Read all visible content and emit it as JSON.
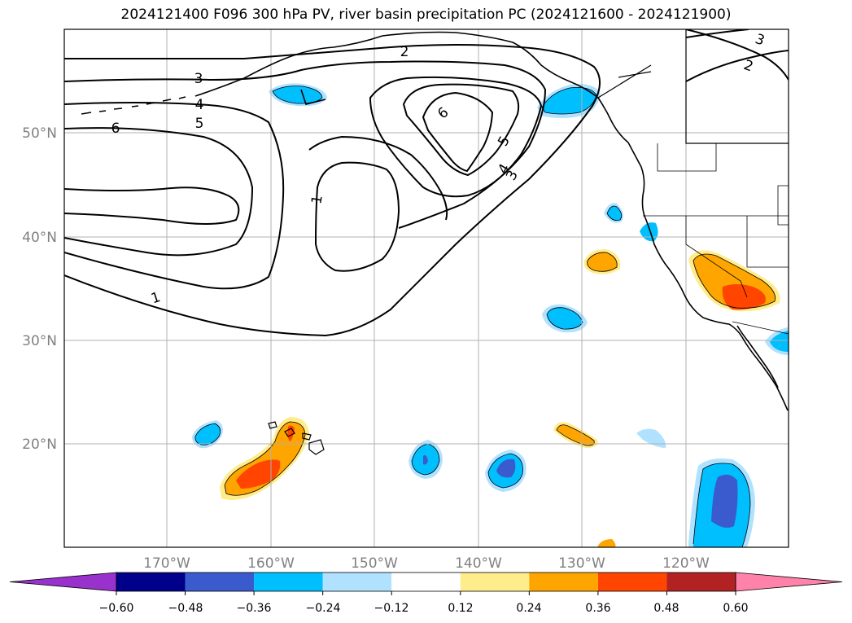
{
  "title": "2024121400 F096 300 hPa PV, river basin precipitation PC (2024121600 - 2024121900)",
  "map": {
    "lat_labels": [
      "50°N",
      "40°N",
      "30°N",
      "20°N"
    ],
    "lon_labels": [
      "170°W",
      "160°W",
      "150°W",
      "140°W",
      "130°W",
      "120°W"
    ],
    "contour_labels": [
      "1",
      "1",
      "2",
      "2",
      "3",
      "3",
      "3",
      "4",
      "4",
      "5",
      "5",
      "6",
      "6"
    ]
  },
  "colorbar": {
    "colors": [
      "#9932CC",
      "#00008B",
      "#3A5BCD",
      "#00BFFF",
      "#B0E2FF",
      "#FFFFFF",
      "#FFEC8B",
      "#FFA500",
      "#FF4500",
      "#B22222",
      "#FF82AB"
    ],
    "tick_labels": [
      "−0.60",
      "−0.48",
      "−0.36",
      "−0.24",
      "−0.12",
      "0.12",
      "0.24",
      "0.36",
      "0.48",
      "0.60"
    ]
  }
}
